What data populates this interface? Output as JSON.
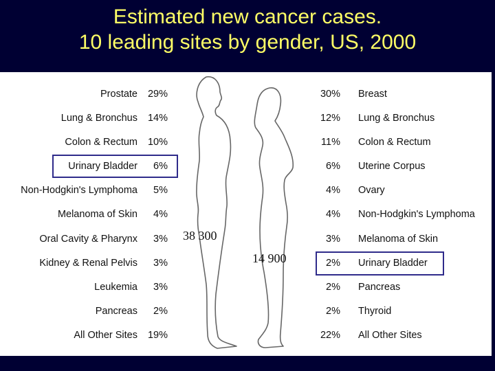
{
  "title": {
    "line1": "Estimated new cancer cases.",
    "line2": "10 leading sites by gender, US, 2000"
  },
  "male": {
    "count": "38 300",
    "sites": [
      {
        "site": "Prostate",
        "percent": "29%"
      },
      {
        "site": "Lung & Bronchus",
        "percent": "14%"
      },
      {
        "site": "Colon & Rectum",
        "percent": "10%"
      },
      {
        "site": "Urinary Bladder",
        "percent": "6%"
      },
      {
        "site": "Non-Hodgkin's Lymphoma",
        "percent": "5%"
      },
      {
        "site": "Melanoma of Skin",
        "percent": "4%"
      },
      {
        "site": "Oral Cavity & Pharynx",
        "percent": "3%"
      },
      {
        "site": "Kidney & Renal Pelvis",
        "percent": "3%"
      },
      {
        "site": "Leukemia",
        "percent": "3%"
      },
      {
        "site": "Pancreas",
        "percent": "2%"
      },
      {
        "site": "All Other Sites",
        "percent": "19%"
      }
    ]
  },
  "female": {
    "count": "14 900",
    "sites": [
      {
        "site": "Breast",
        "percent": "30%"
      },
      {
        "site": "Lung & Bronchus",
        "percent": "12%"
      },
      {
        "site": "Colon & Rectum",
        "percent": "11%"
      },
      {
        "site": "Uterine Corpus",
        "percent": "6%"
      },
      {
        "site": "Ovary",
        "percent": "4%"
      },
      {
        "site": "Non-Hodgkin's Lymphoma",
        "percent": "4%"
      },
      {
        "site": "Melanoma of Skin",
        "percent": "3%"
      },
      {
        "site": "Urinary Bladder",
        "percent": "2%"
      },
      {
        "site": "Pancreas",
        "percent": "2%"
      },
      {
        "site": "Thyroid",
        "percent": "2%"
      },
      {
        "site": "All Other Sites",
        "percent": "22%"
      }
    ]
  },
  "colors": {
    "background": "#000033",
    "title": "#ffff66",
    "highlight": "#2e2a8a",
    "figure_stroke": "#666666"
  }
}
